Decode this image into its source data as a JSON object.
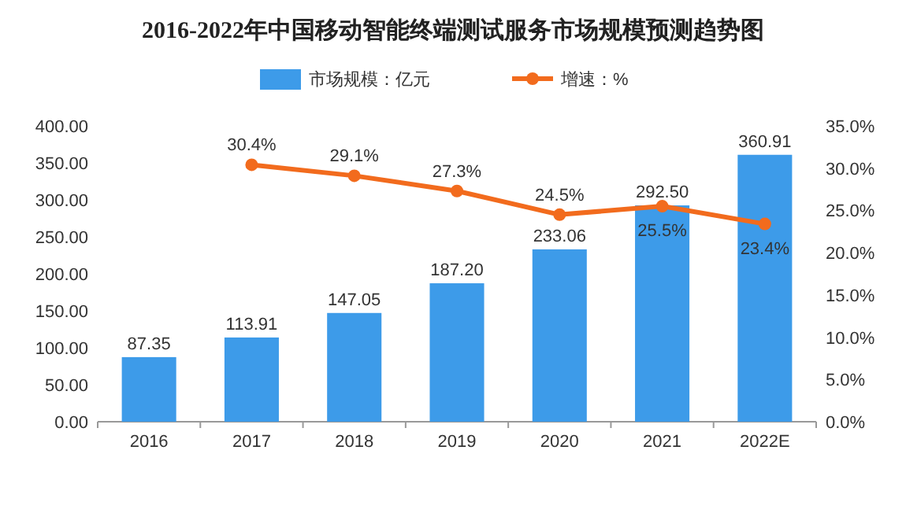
{
  "chart_data": {
    "type": "bar",
    "title": "2016-2022年中国移动智能终端测试服务市场规模预测趋势图",
    "categories": [
      "2016",
      "2017",
      "2018",
      "2019",
      "2020",
      "2021",
      "2022E"
    ],
    "series": [
      {
        "name": "市场规模：亿元",
        "color": "#3d9be9",
        "values": [
          87.35,
          113.91,
          147.05,
          187.2,
          233.06,
          292.5,
          360.91
        ],
        "value_labels": [
          "87.35",
          "113.91",
          "147.05",
          "187.20",
          "233.06",
          "292.50",
          "360.91"
        ]
      },
      {
        "name": "增速：%",
        "type": "line",
        "axis": "y2",
        "color": "#f26b1d",
        "marker": "circle",
        "values": [
          null,
          30.4,
          29.1,
          27.3,
          24.5,
          25.5,
          23.4
        ],
        "value_labels": [
          null,
          "30.4%",
          "29.1%",
          "27.3%",
          "24.5%",
          "25.5%",
          "23.4%"
        ]
      }
    ],
    "ylim": [
      0,
      400
    ],
    "yticks": [
      {
        "value": 0,
        "label": "0.00"
      },
      {
        "value": 50,
        "label": "50.00"
      },
      {
        "value": 100,
        "label": "100.00"
      },
      {
        "value": 150,
        "label": "150.00"
      },
      {
        "value": 200,
        "label": "200.00"
      },
      {
        "value": 250,
        "label": "250.00"
      },
      {
        "value": 300,
        "label": "300.00"
      },
      {
        "value": 350,
        "label": "350.00"
      },
      {
        "value": 400,
        "label": "400.00"
      }
    ],
    "y2lim": [
      0,
      35
    ],
    "y2ticks": [
      {
        "value": 0,
        "label": "0.0%"
      },
      {
        "value": 5,
        "label": "5.0%"
      },
      {
        "value": 10,
        "label": "10.0%"
      },
      {
        "value": 15,
        "label": "15.0%"
      },
      {
        "value": 20,
        "label": "20.0%"
      },
      {
        "value": 25,
        "label": "25.0%"
      },
      {
        "value": 30,
        "label": "30.0%"
      },
      {
        "value": 35,
        "label": "35.0%"
      }
    ],
    "legend": "top"
  }
}
